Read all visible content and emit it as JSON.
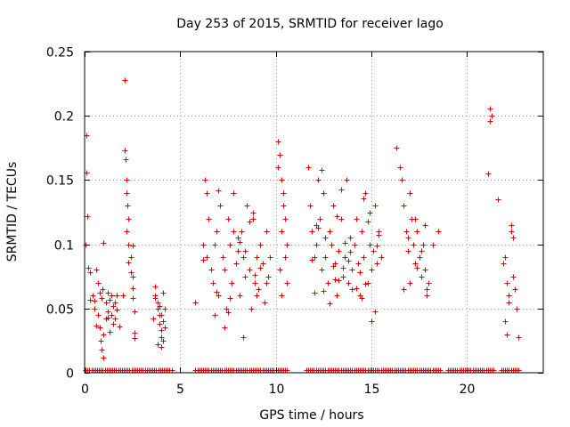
{
  "chart_data": {
    "type": "scatter",
    "title": "Day 253 of 2015, SRMTID for receiver Iago",
    "xlabel": "GPS time / hours",
    "ylabel": "SRMTID / TECUs",
    "xlim": [
      0,
      24
    ],
    "ylim": [
      0,
      0.25
    ],
    "xticks": [
      0,
      5,
      10,
      15,
      20
    ],
    "xtick_labels": [
      "0",
      "5",
      "10",
      "15",
      "20"
    ],
    "yticks": [
      0,
      0.05,
      0.1,
      0.15,
      0.2,
      0.25
    ],
    "ytick_labels": [
      "0",
      "0.05",
      "0.1",
      "0.15",
      "0.2",
      "0.25"
    ],
    "grid": true,
    "marker": "+",
    "color": "#dd0000",
    "series": [
      {
        "name": "SRMTID",
        "x": [
          0.05,
          0.1,
          0.1,
          0.15,
          0.2,
          0.3,
          0.3,
          0.4,
          0.5,
          0.6,
          0.7,
          0.8,
          0.9,
          1.0,
          1.0,
          1.1,
          1.1,
          1.2,
          1.2,
          1.3,
          1.3,
          1.4,
          1.4,
          1.5,
          1.5,
          1.6,
          1.6,
          1.7,
          1.8,
          0.8,
          0.9,
          1.0,
          1.2,
          0.85,
          0.95,
          0.7,
          0.6,
          0.5,
          1.7,
          2.0,
          2.1,
          2.1,
          2.15,
          2.2,
          2.2,
          2.25,
          2.3,
          2.3,
          2.4,
          2.4,
          2.5,
          2.5,
          2.6,
          2.6,
          2.5,
          2.3,
          2.2,
          2.6,
          2.5,
          3.6,
          3.7,
          3.7,
          3.8,
          3.8,
          3.9,
          3.9,
          4.0,
          4.0,
          4.1,
          4.1,
          4.2,
          4.2,
          3.8,
          4.0,
          3.9,
          4.1,
          4.0,
          3.7,
          5.8,
          6.2,
          6.3,
          6.4,
          6.5,
          6.6,
          6.7,
          6.8,
          6.9,
          7.0,
          7.1,
          7.2,
          7.3,
          7.4,
          7.5,
          7.6,
          7.7,
          7.8,
          7.9,
          8.0,
          8.1,
          8.2,
          8.3,
          8.4,
          8.5,
          8.6,
          8.7,
          8.8,
          8.9,
          9.0,
          9.1,
          9.2,
          9.3,
          9.4,
          9.5,
          9.6,
          9.7,
          6.4,
          6.8,
          7.3,
          7.8,
          8.0,
          8.3,
          8.8,
          9.0,
          7.0,
          7.5,
          8.4,
          8.6,
          9.2,
          9.5,
          6.2,
          6.9,
          7.6,
          8.1,
          8.9,
          10.1,
          10.2,
          10.3,
          10.4,
          10.5,
          10.6,
          10.2,
          10.3,
          10.5,
          10.4,
          10.6,
          10.3,
          10.1,
          11.7,
          11.8,
          11.9,
          12.0,
          12.1,
          12.2,
          12.3,
          12.4,
          12.5,
          12.6,
          12.7,
          12.8,
          12.9,
          13.0,
          13.1,
          13.2,
          13.3,
          13.4,
          13.5,
          13.6,
          13.7,
          13.8,
          13.9,
          14.0,
          14.1,
          14.2,
          14.3,
          14.4,
          14.5,
          14.6,
          14.7,
          14.8,
          14.9,
          15.0,
          15.1,
          15.2,
          15.3,
          15.4,
          15.5,
          12.0,
          12.4,
          12.8,
          13.0,
          13.3,
          13.6,
          14.0,
          14.4,
          14.8,
          15.2,
          12.2,
          12.6,
          13.2,
          13.8,
          14.2,
          14.6,
          15.0,
          15.3,
          11.9,
          12.5,
          13.1,
          13.5,
          13.9,
          14.5,
          14.9,
          15.4,
          12.1,
          13.4,
          14.7,
          16.3,
          16.5,
          16.6,
          16.7,
          16.8,
          16.9,
          17.0,
          17.1,
          17.2,
          17.3,
          17.4,
          17.5,
          17.6,
          17.7,
          17.8,
          17.9,
          18.0,
          18.2,
          18.5,
          16.7,
          17.0,
          17.3,
          17.6,
          17.9,
          16.9,
          17.4,
          17.8,
          21.1,
          21.2,
          21.2,
          21.3,
          21.6,
          21.9,
          22.0,
          22.1,
          22.2,
          22.3,
          22.4,
          22.5,
          22.6,
          22.7,
          22.0,
          22.2,
          22.4,
          22.3,
          22.1
        ],
        "y": [
          0.1,
          0.185,
          0.156,
          0.122,
          0.082,
          0.078,
          0.057,
          0.06,
          0.05,
          0.037,
          0.045,
          0.062,
          0.058,
          0.03,
          0.101,
          0.042,
          0.055,
          0.062,
          0.048,
          0.032,
          0.057,
          0.045,
          0.06,
          0.052,
          0.038,
          0.042,
          0.055,
          0.049,
          0.036,
          0.035,
          0.018,
          0.012,
          0.043,
          0.025,
          0.065,
          0.07,
          0.08,
          0.056,
          0.06,
          0.06,
          0.228,
          0.173,
          0.166,
          0.15,
          0.14,
          0.13,
          0.12,
          0.1,
          0.09,
          0.078,
          0.066,
          0.058,
          0.048,
          0.031,
          0.099,
          0.086,
          0.11,
          0.027,
          0.075,
          0.042,
          0.067,
          0.06,
          0.055,
          0.05,
          0.045,
          0.038,
          0.033,
          0.028,
          0.025,
          0.04,
          0.035,
          0.05,
          0.022,
          0.02,
          0.052,
          0.062,
          0.045,
          0.058,
          0.055,
          0.1,
          0.15,
          0.09,
          0.12,
          0.08,
          0.07,
          0.1,
          0.11,
          0.06,
          0.13,
          0.09,
          0.08,
          0.05,
          0.12,
          0.1,
          0.07,
          0.14,
          0.085,
          0.095,
          0.06,
          0.11,
          0.09,
          0.075,
          0.13,
          0.08,
          0.05,
          0.12,
          0.07,
          0.09,
          0.065,
          0.1,
          0.085,
          0.055,
          0.11,
          0.075,
          0.09,
          0.14,
          0.045,
          0.035,
          0.11,
          0.105,
          0.028,
          0.125,
          0.06,
          0.142,
          0.047,
          0.095,
          0.118,
          0.082,
          0.07,
          0.088,
          0.063,
          0.058,
          0.102,
          0.076,
          0.18,
          0.17,
          0.15,
          0.14,
          0.12,
          0.1,
          0.08,
          0.06,
          0.09,
          0.13,
          0.07,
          0.11,
          0.16,
          0.16,
          0.13,
          0.11,
          0.09,
          0.1,
          0.15,
          0.12,
          0.08,
          0.14,
          0.09,
          0.07,
          0.11,
          0.1,
          0.13,
          0.085,
          0.06,
          0.095,
          0.12,
          0.075,
          0.09,
          0.15,
          0.07,
          0.105,
          0.08,
          0.1,
          0.12,
          0.085,
          0.06,
          0.11,
          0.09,
          0.14,
          0.07,
          0.1,
          0.08,
          0.095,
          0.13,
          0.085,
          0.11,
          0.09,
          0.062,
          0.158,
          0.054,
          0.083,
          0.072,
          0.101,
          0.065,
          0.078,
          0.118,
          0.048,
          0.113,
          0.105,
          0.122,
          0.087,
          0.066,
          0.136,
          0.04,
          0.099,
          0.088,
          0.064,
          0.073,
          0.082,
          0.094,
          0.058,
          0.125,
          0.107,
          0.115,
          0.143,
          0.069,
          0.175,
          0.16,
          0.15,
          0.13,
          0.11,
          0.095,
          0.14,
          0.12,
          0.1,
          0.085,
          0.11,
          0.09,
          0.075,
          0.1,
          0.08,
          0.065,
          0.07,
          0.1,
          0.11,
          0.065,
          0.07,
          0.12,
          0.095,
          0.06,
          0.105,
          0.082,
          0.115,
          0.155,
          0.206,
          0.196,
          0.2,
          0.135,
          0.085,
          0.09,
          0.07,
          0.055,
          0.11,
          0.105,
          0.065,
          0.05,
          0.028,
          0.04,
          0.06,
          0.075,
          0.115,
          0.03
        ]
      }
    ]
  }
}
